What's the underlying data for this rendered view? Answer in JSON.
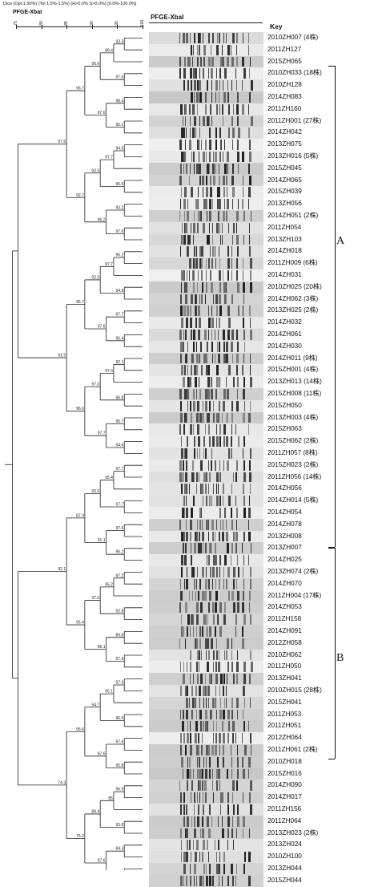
{
  "header": {
    "note": "Dice (Opt:1.50%) (Tol 1.5%-1.5%) (H>0.0% S>0.0%) [0.0%-100.0%]",
    "title_left": "PFGE-XbaI",
    "title_gel": "PFGE-XbaI",
    "key_label": "Key"
  },
  "scale": {
    "ticks": [
      "75",
      "80",
      "85",
      "90",
      "95",
      "100"
    ]
  },
  "clusters": {
    "A": "A",
    "B": "B"
  },
  "isolates": [
    "2010ZH007 (4株)",
    "2011ZH127",
    "2015ZH065",
    "2010ZH033 (18株)",
    "2010ZH128",
    "2014ZH083",
    "2011ZH160",
    "2011ZH001 (27株)",
    "2014ZH042",
    "2013ZH075",
    "2013ZH016 (5株)",
    "2015ZH045",
    "2014ZH065",
    "2015ZH039",
    "2013ZH056",
    "2014ZH051 (2株)",
    "2011ZH054",
    "2013ZH103",
    "2014ZH018",
    "2011ZH009 (6株)",
    "2014ZH031",
    "2010ZH025 (20株)",
    "2014ZH062 (3株)",
    "2013ZH025 (2株)",
    "2014ZH032",
    "2014ZH061",
    "2014ZH030",
    "2014ZH011 (9株)",
    "2015ZH001 (4株)",
    "2013ZH013 (14株)",
    "2015ZH008 (11株)",
    "2015ZH050",
    "2013ZH003 (4株)",
    "2015ZH063",
    "2015ZH062 (2株)",
    "2011ZH057 (8株)",
    "2015ZH023 (2株)",
    "2011ZH056 (14株)",
    "2014ZH056",
    "2014ZH014 (5株)",
    "2014ZH054",
    "2014ZH078",
    "2013ZH008",
    "2013ZH007",
    "2014ZH025",
    "2013ZH074 (2株)",
    "2014ZH070",
    "2011ZH004 (17株)",
    "2014ZH053",
    "2011ZH158",
    "2014ZH091",
    "2012ZH058",
    "2010ZH062",
    "2011ZH050",
    "2013ZH041",
    "2010ZH015 (28株)",
    "2015ZH041",
    "2011ZH053",
    "2011ZH051",
    "2012ZH064",
    "2011ZH061 (2株)",
    "2010ZH018",
    "2015ZH016",
    "2014ZH090",
    "2014ZH017",
    "2011ZH156",
    "2011ZH064",
    "2013ZH023 (2株)",
    "2013ZH024",
    "2010ZH100",
    "2013ZH044",
    "2015ZH044"
  ],
  "node_values": [
    "93.3",
    "89.4",
    "97.6",
    "96.6",
    "98.4",
    "95.1",
    "97.6",
    "96.7",
    "94.5",
    "97.7",
    "96.6",
    "93.5",
    "93.2",
    "97.6",
    "96.2",
    "92.7",
    "97.6",
    "96.2",
    "97.7",
    "94.8",
    "92.5",
    "97.7",
    "96.4",
    "97.6",
    "96.7",
    "92.1",
    "97.0",
    "96.8",
    "97.0",
    "95.7",
    "94.6",
    "97.7",
    "96.6",
    "91.5",
    "97.7",
    "95.4",
    "97.7",
    "93.6",
    "97.6",
    "96.2",
    "91.1",
    "87.9",
    "87.2",
    "95.2",
    "92.8",
    "97.6",
    "89.8",
    "97.9",
    "96.1",
    "95.4",
    "92.1",
    "97.6",
    "95.1",
    "96.6",
    "94.7",
    "97.6",
    "95.8",
    "97.6",
    "95.6",
    "96.9",
    "85",
    "93.8",
    "88.4",
    "84.3",
    "81",
    "97.6",
    "75.2",
    "74.3",
    "95.1",
    "85.4"
  ]
}
